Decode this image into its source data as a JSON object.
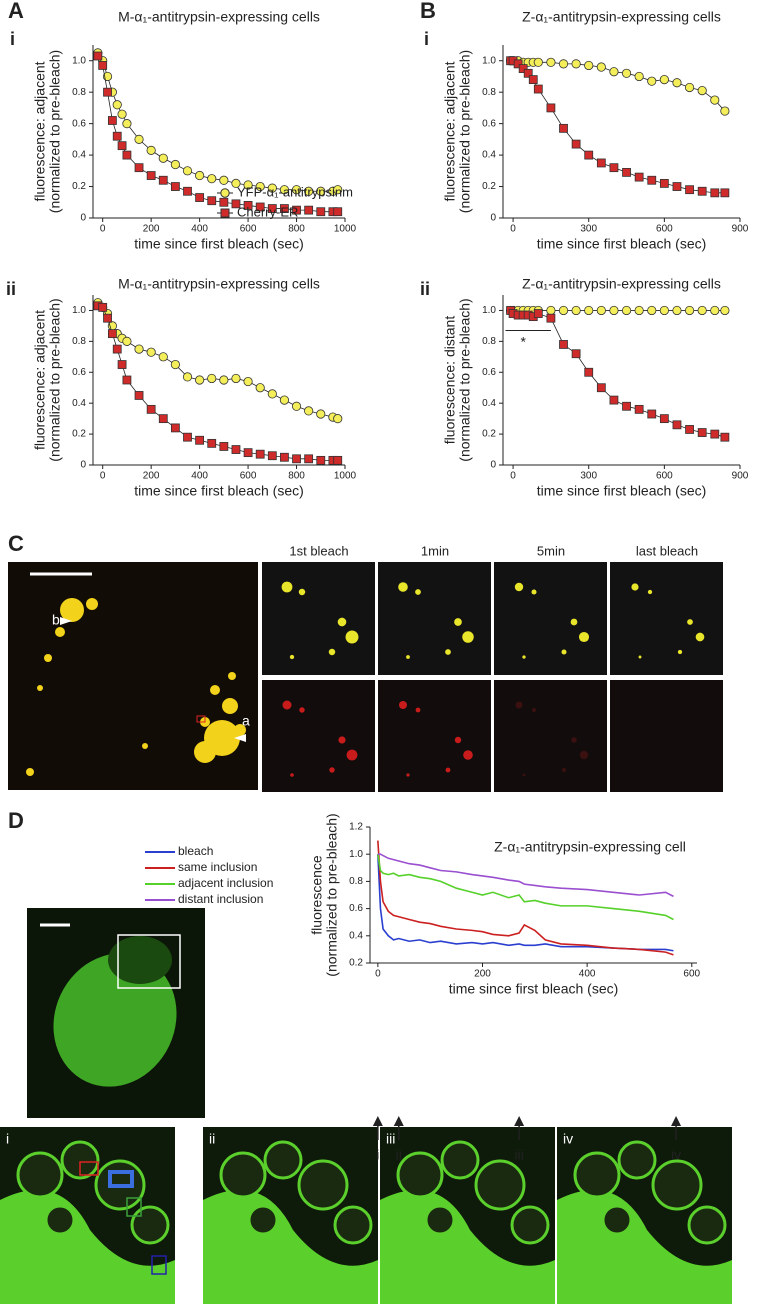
{
  "chart_data": [
    {
      "type": "line",
      "panel": "A",
      "sub": "i",
      "title": "M-α₁-antitrypsin-expressing cells",
      "xlabel": "time since first bleach (sec)",
      "ylabel": [
        "fluorescence: adjacent",
        "(normalized to pre-bleach)"
      ],
      "xlim": [
        -40,
        1000
      ],
      "xticks": [
        0,
        200,
        400,
        600,
        800,
        1000
      ],
      "ylim": [
        0,
        1.1
      ],
      "yticks": [
        0,
        0.2,
        0.4,
        0.6,
        0.8,
        {
          "value": 1,
          "label": "1.0"
        }
      ],
      "legend": "center-right",
      "x": [
        -20,
        0,
        20,
        40,
        60,
        80,
        100,
        150,
        200,
        250,
        300,
        350,
        400,
        450,
        500,
        550,
        600,
        650,
        700,
        750,
        800,
        850,
        900,
        950,
        970
      ],
      "series": [
        {
          "name": "YFP-α₁-antitrypsinm",
          "color": "#f3ee5a",
          "marker": "circle",
          "values": [
            1.05,
            1.0,
            0.9,
            0.8,
            0.72,
            0.66,
            0.6,
            0.5,
            0.43,
            0.38,
            0.34,
            0.3,
            0.27,
            0.25,
            0.24,
            0.22,
            0.21,
            0.2,
            0.19,
            0.18,
            0.18,
            0.17,
            0.17,
            0.17,
            0.18
          ]
        },
        {
          "name": "Cherry-ER",
          "color": "#cf2b2b",
          "marker": "square",
          "values": [
            1.03,
            0.97,
            0.8,
            0.62,
            0.52,
            0.46,
            0.4,
            0.32,
            0.27,
            0.24,
            0.2,
            0.17,
            0.13,
            0.11,
            0.1,
            0.09,
            0.08,
            0.07,
            0.06,
            0.06,
            0.05,
            0.05,
            0.04,
            0.04,
            0.04
          ]
        }
      ]
    },
    {
      "type": "line",
      "sub": "ii",
      "title": "M-α₁-antitrypsin-expressing cells",
      "xlabel": "time since first bleach (sec)",
      "ylabel": [
        "fluorescence: adjacent",
        "(normalized to pre-bleach)"
      ],
      "xlim": [
        -40,
        1000
      ],
      "xticks": [
        0,
        200,
        400,
        600,
        800,
        1000
      ],
      "ylim": [
        0,
        1.1
      ],
      "yticks": [
        0,
        0.2,
        0.4,
        0.6,
        0.8,
        {
          "value": 1,
          "label": "1.0"
        }
      ],
      "x": [
        -20,
        0,
        20,
        40,
        60,
        80,
        100,
        150,
        200,
        250,
        300,
        350,
        400,
        450,
        500,
        550,
        600,
        650,
        700,
        750,
        800,
        850,
        900,
        950,
        970
      ],
      "series": [
        {
          "color": "#f3ee5a",
          "marker": "circle",
          "values": [
            1.05,
            1.02,
            0.98,
            0.9,
            0.85,
            0.82,
            0.8,
            0.75,
            0.73,
            0.7,
            0.65,
            0.57,
            0.55,
            0.56,
            0.55,
            0.56,
            0.54,
            0.5,
            0.46,
            0.42,
            0.38,
            0.35,
            0.33,
            0.31,
            0.3
          ]
        },
        {
          "color": "#cf2b2b",
          "marker": "square",
          "values": [
            1.03,
            1.02,
            0.95,
            0.85,
            0.75,
            0.65,
            0.55,
            0.45,
            0.36,
            0.3,
            0.24,
            0.18,
            0.16,
            0.14,
            0.12,
            0.1,
            0.08,
            0.07,
            0.06,
            0.05,
            0.04,
            0.04,
            0.03,
            0.03,
            0.03
          ]
        }
      ]
    },
    {
      "type": "line",
      "panel": "B",
      "sub": "i",
      "title": "Z-α₁-antitrypsin-expressing cells",
      "xlabel": "time since first bleach (sec)",
      "ylabel": [
        "fluorescence: adjacent",
        "(normalized to pre-bleach)"
      ],
      "xlim": [
        -40,
        900
      ],
      "xticks": [
        0,
        300,
        600,
        900
      ],
      "ylim": [
        0,
        1.1
      ],
      "yticks": [
        0,
        0.2,
        0.4,
        0.6,
        0.8,
        {
          "value": 1,
          "label": "1.0"
        }
      ],
      "x": [
        -10,
        0,
        20,
        40,
        60,
        80,
        100,
        150,
        200,
        250,
        300,
        350,
        400,
        450,
        500,
        550,
        600,
        650,
        700,
        750,
        800,
        840
      ],
      "series": [
        {
          "color": "#f3ee5a",
          "marker": "circle",
          "values": [
            1.0,
            1.0,
            1.0,
            0.99,
            0.99,
            0.99,
            0.99,
            0.99,
            0.98,
            0.98,
            0.97,
            0.96,
            0.93,
            0.92,
            0.9,
            0.87,
            0.88,
            0.86,
            0.83,
            0.81,
            0.75,
            0.68
          ]
        },
        {
          "color": "#cf2b2b",
          "marker": "square",
          "values": [
            1.0,
            1.0,
            0.98,
            0.95,
            0.92,
            0.88,
            0.82,
            0.7,
            0.57,
            0.47,
            0.4,
            0.35,
            0.32,
            0.29,
            0.26,
            0.24,
            0.22,
            0.2,
            0.18,
            0.17,
            0.16,
            0.16
          ]
        }
      ]
    },
    {
      "type": "line",
      "sub": "ii",
      "title": "Z-α₁-antitrypsin-expressing cells",
      "xlabel": "time since first bleach (sec)",
      "ylabel": [
        "fluorescence: distant",
        "(normalized to pre-bleach)"
      ],
      "xlim": [
        -40,
        900
      ],
      "xticks": [
        0,
        300,
        600,
        900
      ],
      "ylim": [
        0,
        1.1
      ],
      "yticks": [
        0,
        0.2,
        0.4,
        0.6,
        0.8,
        {
          "value": 1,
          "label": "1.0"
        }
      ],
      "reference_line": {
        "y": 0.87,
        "x0": -30,
        "x1": 150
      },
      "annotations": [
        {
          "text": "*",
          "x": 40,
          "y": 0.79
        }
      ],
      "x": [
        -10,
        0,
        20,
        40,
        60,
        80,
        100,
        150,
        200,
        250,
        300,
        350,
        400,
        450,
        500,
        550,
        600,
        650,
        700,
        750,
        800,
        840
      ],
      "series": [
        {
          "color": "#f3ee5a",
          "marker": "circle",
          "values": [
            1.0,
            1.0,
            1.0,
            1.0,
            1.0,
            1.0,
            1.0,
            1.0,
            1.0,
            1.0,
            1.0,
            1.0,
            1.0,
            1.0,
            1.0,
            1.0,
            1.0,
            1.0,
            1.0,
            1.0,
            1.0,
            1.0
          ]
        },
        {
          "color": "#cf2b2b",
          "marker": "square",
          "values": [
            1.0,
            0.98,
            0.97,
            0.97,
            0.97,
            0.96,
            0.98,
            0.95,
            0.78,
            0.72,
            0.6,
            0.5,
            0.42,
            0.38,
            0.36,
            0.33,
            0.3,
            0.26,
            0.23,
            0.21,
            0.2,
            0.18
          ]
        }
      ]
    },
    {
      "type": "line",
      "panel": "D",
      "title": "Z-α₁-antitrypsin-expressing cell",
      "xlabel": "time since first bleach (sec)",
      "ylabel": [
        "fluorescence",
        "(normalized to pre-bleach)"
      ],
      "xlim": [
        -15,
        610
      ],
      "xticks": [
        0,
        200,
        400,
        600
      ],
      "ylim": [
        0.2,
        1.2
      ],
      "yticks": [
        0.2,
        0.4,
        0.6,
        0.8,
        {
          "value": 1,
          "label": "1.0"
        },
        1.2
      ],
      "legend": "upper-left",
      "arrows": [
        {
          "x": 0,
          "label": "i"
        },
        {
          "x": 40,
          "label": "ii"
        },
        {
          "x": 270,
          "label": "iii"
        },
        {
          "x": 570,
          "label": "iv"
        }
      ],
      "x": [
        0,
        5,
        10,
        20,
        30,
        40,
        60,
        80,
        100,
        120,
        150,
        180,
        200,
        220,
        250,
        270,
        280,
        300,
        320,
        350,
        400,
        450,
        500,
        550,
        565
      ],
      "series": [
        {
          "name": "bleach",
          "color": "#2a3fcf",
          "values": [
            1.0,
            0.6,
            0.45,
            0.4,
            0.37,
            0.38,
            0.36,
            0.37,
            0.35,
            0.36,
            0.34,
            0.35,
            0.34,
            0.35,
            0.33,
            0.34,
            0.33,
            0.33,
            0.34,
            0.32,
            0.32,
            0.31,
            0.3,
            0.3,
            0.29
          ]
        },
        {
          "name": "same inclusion",
          "color": "#cc2020",
          "values": [
            1.1,
            0.8,
            0.65,
            0.58,
            0.55,
            0.54,
            0.52,
            0.5,
            0.49,
            0.47,
            0.45,
            0.44,
            0.43,
            0.41,
            0.4,
            0.42,
            0.48,
            0.44,
            0.37,
            0.34,
            0.33,
            0.31,
            0.3,
            0.28,
            0.26
          ]
        },
        {
          "name": "adjacent inclusion",
          "color": "#55d12a",
          "values": [
            1.0,
            0.88,
            0.86,
            0.85,
            0.86,
            0.84,
            0.85,
            0.83,
            0.82,
            0.8,
            0.75,
            0.72,
            0.7,
            0.72,
            0.68,
            0.7,
            0.65,
            0.66,
            0.64,
            0.62,
            0.62,
            0.6,
            0.58,
            0.55,
            0.52
          ]
        },
        {
          "name": "distant inclusion",
          "color": "#9a4fd0",
          "values": [
            1.0,
            1.0,
            0.99,
            0.97,
            0.96,
            0.95,
            0.93,
            0.92,
            0.9,
            0.88,
            0.87,
            0.85,
            0.84,
            0.83,
            0.81,
            0.8,
            0.78,
            0.77,
            0.76,
            0.75,
            0.74,
            0.72,
            0.7,
            0.72,
            0.69
          ]
        }
      ]
    }
  ],
  "images": {
    "C": {
      "label": "C",
      "titles": [
        "1st bleach",
        "1min",
        "5min",
        "last bleach"
      ],
      "markers": [
        "b",
        "a"
      ]
    },
    "D": {
      "insets": [
        "i",
        "ii",
        "iii",
        "iv"
      ]
    }
  }
}
